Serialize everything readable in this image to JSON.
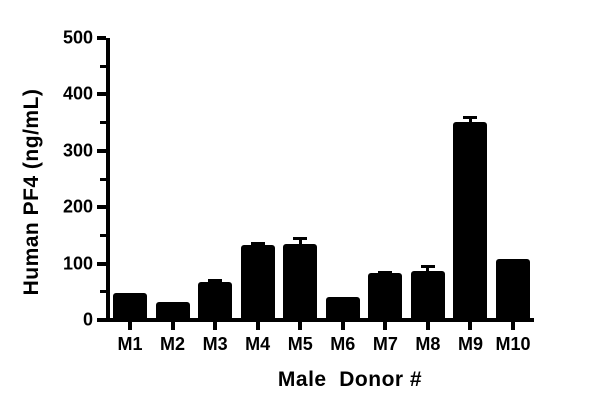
{
  "chart_data": {
    "type": "bar",
    "title": "",
    "xlabel": "Male  Donor #",
    "ylabel": "Human PF4 (ng/mL)",
    "categories": [
      "M1",
      "M2",
      "M3",
      "M4",
      "M5",
      "M6",
      "M7",
      "M8",
      "M9",
      "M10"
    ],
    "values": [
      44,
      29,
      64,
      129,
      131,
      37,
      79,
      83,
      347,
      104
    ],
    "errors_upper": [
      0,
      0,
      4,
      4,
      11,
      0,
      3,
      10,
      10,
      0
    ],
    "ylim": [
      0,
      500
    ],
    "ytick_major_step": 100,
    "ytick_minor_step": 50,
    "ytick_labels": [
      "0",
      "100",
      "200",
      "300",
      "400",
      "500"
    ],
    "bar_color": "#000000",
    "axis_color": "#000000",
    "background_color": "#ffffff",
    "grid": false,
    "legend": null,
    "error_bars": "upper only, T-cap style"
  }
}
